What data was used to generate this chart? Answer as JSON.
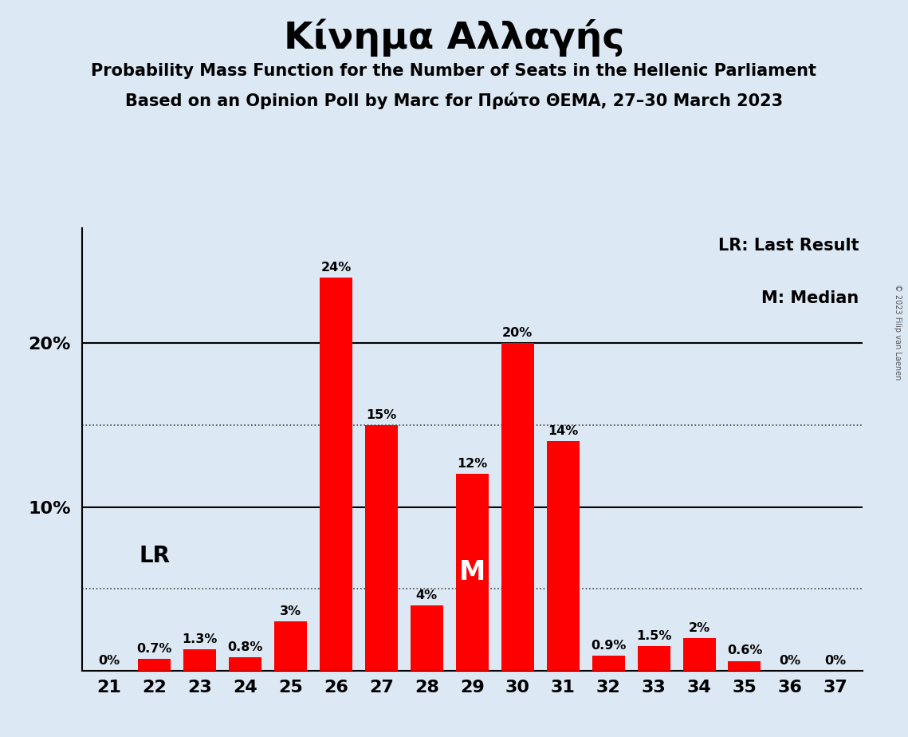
{
  "title": "Κίνημα Αλλαγής",
  "subtitle1": "Probability Mass Function for the Number of Seats in the Hellenic Parliament",
  "subtitle2": "Based on an Opinion Poll by Marc for Πρώτο ΘΕΜΑ, 27–30 March 2023",
  "categories": [
    21,
    22,
    23,
    24,
    25,
    26,
    27,
    28,
    29,
    30,
    31,
    32,
    33,
    34,
    35,
    36,
    37
  ],
  "values": [
    0.0,
    0.7,
    1.3,
    0.8,
    3.0,
    24.0,
    15.0,
    4.0,
    12.0,
    20.0,
    14.0,
    0.9,
    1.5,
    2.0,
    0.6,
    0.0,
    0.0
  ],
  "labels": [
    "0%",
    "0.7%",
    "1.3%",
    "0.8%",
    "3%",
    "24%",
    "15%",
    "4%",
    "12%",
    "20%",
    "14%",
    "0.9%",
    "1.5%",
    "2%",
    "0.6%",
    "0%",
    "0%"
  ],
  "bar_color": "#FF0000",
  "background_color": "#dce9f5",
  "text_color": "#000000",
  "white_text_color": "#FFFFFF",
  "grid_color": "#000000",
  "dotted_grid_color": "#444444",
  "ylim": [
    0,
    27
  ],
  "major_yticks": [
    10,
    20
  ],
  "dotted_yticks": [
    5,
    15
  ],
  "lr_bar": 22,
  "median_bar": 29,
  "legend_lr": "LR: Last Result",
  "legend_m": "M: Median",
  "lr_label": "LR",
  "m_label": "M",
  "copyright": "© 2023 Filip van Laenen"
}
